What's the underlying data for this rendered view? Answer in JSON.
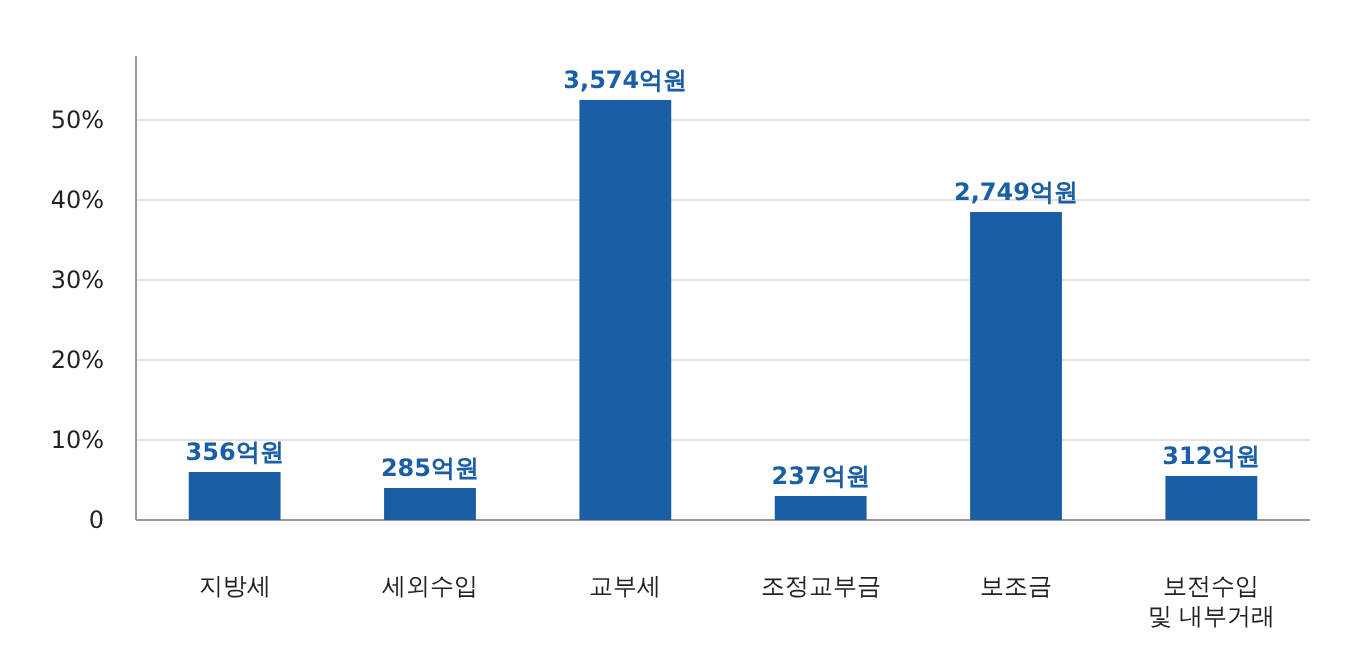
{
  "chart_data": {
    "type": "bar",
    "categories": [
      "지방세",
      "세외수입",
      "교부세",
      "조정교부금",
      "보조금",
      "보전수입\n및 내부거래"
    ],
    "values": [
      6,
      4,
      52.5,
      3,
      38.5,
      5.5
    ],
    "annotations": [
      {
        "text": "356억원",
        "x": "지방세",
        "y": 6
      },
      {
        "text": "285억원",
        "x": "세외수입",
        "y": 4
      },
      {
        "text": "3,574억원",
        "x": "교부세",
        "y": 52.5
      },
      {
        "text": "237억원",
        "x": "조정교부금",
        "y": 3
      },
      {
        "text": "2,749억원",
        "x": "보조금",
        "y": 38.5
      },
      {
        "text": "312억원",
        "x": "보전수입\n및 내부거래",
        "y": 5.5
      }
    ],
    "color": "#1a5ea6",
    "ylim": [
      0,
      58
    ],
    "yticks": [
      0,
      {
        "value": 10,
        "label": "10%"
      },
      {
        "value": 20,
        "label": "20%"
      },
      {
        "value": 30,
        "label": "30%"
      },
      {
        "value": 40,
        "label": "40%"
      },
      {
        "value": 50,
        "label": "50%"
      }
    ],
    "grid": "y"
  }
}
